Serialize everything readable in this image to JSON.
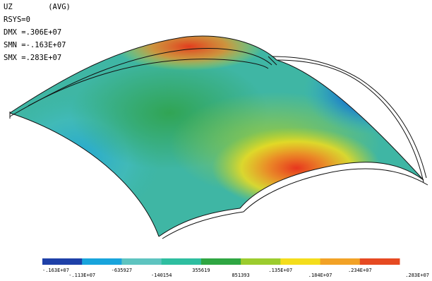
{
  "result_info": {
    "title": "UZ",
    "avg": "(AVG)",
    "rsys": "RSYS=0",
    "dmx": "DMX =.306E+07",
    "smn": "SMN =-.163E+07",
    "smx": "SMX =.283E+07"
  },
  "legend": {
    "colors": [
      "#1e40a8",
      "#18a4dc",
      "#5ec4c0",
      "#2ebea0",
      "#2fa642",
      "#9ccc2e",
      "#f4dd1c",
      "#f2a226",
      "#e64a22"
    ],
    "labels": [
      "-.163E+07",
      "-.113E+07",
      "-635927",
      "-140154",
      "355619",
      "851393",
      ".135E+07",
      ".184E+07",
      ".234E+07",
      ".283E+07"
    ]
  }
}
